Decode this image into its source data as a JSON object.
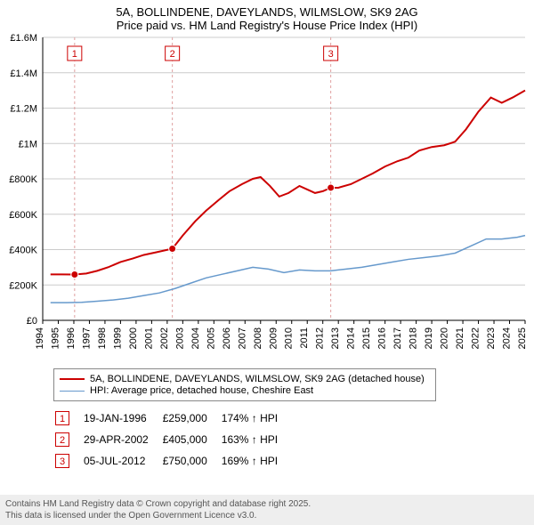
{
  "title_line1": "5A, BOLLINDENE, DAVEYLANDS, WILMSLOW, SK9 2AG",
  "title_line2": "Price paid vs. HM Land Registry's House Price Index (HPI)",
  "chart": {
    "type": "line",
    "background_color": "#ffffff",
    "grid_color": "#cccccc",
    "x": {
      "min": 1994,
      "max": 2025,
      "ticks": [
        1994,
        1995,
        1996,
        1997,
        1998,
        1999,
        2000,
        2001,
        2002,
        2003,
        2004,
        2005,
        2006,
        2007,
        2008,
        2009,
        2010,
        2011,
        2012,
        2013,
        2014,
        2015,
        2016,
        2017,
        2018,
        2019,
        2020,
        2021,
        2022,
        2023,
        2024,
        2025
      ],
      "tick_label_rotation": -90,
      "tick_fontsize": 11
    },
    "y": {
      "min": 0,
      "max": 1600000,
      "ticks": [
        0,
        200000,
        400000,
        600000,
        800000,
        1000000,
        1200000,
        1400000,
        1600000
      ],
      "tick_labels": [
        "£0",
        "£200K",
        "£400K",
        "£600K",
        "£800K",
        "£1M",
        "£1.2M",
        "£1.4M",
        "£1.6M"
      ],
      "tick_fontsize": 11
    },
    "series": [
      {
        "name": "price_paid",
        "label": "5A, BOLLINDENE, DAVEYLANDS, WILMSLOW, SK9 2AG (detached house)",
        "color": "#cc0000",
        "line_width": 2,
        "points": [
          [
            1994.5,
            260000
          ],
          [
            1995.2,
            260000
          ],
          [
            1996.05,
            259000
          ],
          [
            1996.8,
            265000
          ],
          [
            1997.5,
            280000
          ],
          [
            1998.2,
            300000
          ],
          [
            1999.0,
            330000
          ],
          [
            1999.8,
            350000
          ],
          [
            2000.5,
            370000
          ],
          [
            2001.3,
            385000
          ],
          [
            2002.33,
            405000
          ],
          [
            2003.0,
            480000
          ],
          [
            2003.8,
            560000
          ],
          [
            2004.5,
            620000
          ],
          [
            2005.3,
            680000
          ],
          [
            2006.0,
            730000
          ],
          [
            2006.8,
            770000
          ],
          [
            2007.5,
            800000
          ],
          [
            2008.0,
            810000
          ],
          [
            2008.6,
            760000
          ],
          [
            2009.2,
            700000
          ],
          [
            2009.8,
            720000
          ],
          [
            2010.5,
            760000
          ],
          [
            2011.0,
            740000
          ],
          [
            2011.5,
            720000
          ],
          [
            2012.0,
            730000
          ],
          [
            2012.51,
            750000
          ],
          [
            2013.0,
            750000
          ],
          [
            2013.8,
            770000
          ],
          [
            2014.5,
            800000
          ],
          [
            2015.2,
            830000
          ],
          [
            2016.0,
            870000
          ],
          [
            2016.8,
            900000
          ],
          [
            2017.5,
            920000
          ],
          [
            2018.2,
            960000
          ],
          [
            2019.0,
            980000
          ],
          [
            2019.8,
            990000
          ],
          [
            2020.5,
            1010000
          ],
          [
            2021.2,
            1080000
          ],
          [
            2022.0,
            1180000
          ],
          [
            2022.8,
            1260000
          ],
          [
            2023.5,
            1230000
          ],
          [
            2024.2,
            1260000
          ],
          [
            2025.0,
            1300000
          ]
        ]
      },
      {
        "name": "hpi",
        "label": "HPI: Average price, detached house, Cheshire East",
        "color": "#6699cc",
        "line_width": 1.5,
        "points": [
          [
            1994.5,
            100000
          ],
          [
            1995.5,
            100000
          ],
          [
            1996.5,
            102000
          ],
          [
            1997.5,
            108000
          ],
          [
            1998.5,
            115000
          ],
          [
            1999.5,
            125000
          ],
          [
            2000.5,
            140000
          ],
          [
            2001.5,
            155000
          ],
          [
            2002.5,
            180000
          ],
          [
            2003.5,
            210000
          ],
          [
            2004.5,
            240000
          ],
          [
            2005.5,
            260000
          ],
          [
            2006.5,
            280000
          ],
          [
            2007.5,
            300000
          ],
          [
            2008.5,
            290000
          ],
          [
            2009.5,
            270000
          ],
          [
            2010.5,
            285000
          ],
          [
            2011.5,
            280000
          ],
          [
            2012.5,
            280000
          ],
          [
            2013.5,
            290000
          ],
          [
            2014.5,
            300000
          ],
          [
            2015.5,
            315000
          ],
          [
            2016.5,
            330000
          ],
          [
            2017.5,
            345000
          ],
          [
            2018.5,
            355000
          ],
          [
            2019.5,
            365000
          ],
          [
            2020.5,
            380000
          ],
          [
            2021.5,
            420000
          ],
          [
            2022.5,
            460000
          ],
          [
            2023.5,
            460000
          ],
          [
            2024.5,
            470000
          ],
          [
            2025.0,
            480000
          ]
        ]
      }
    ],
    "sale_markers": [
      {
        "n": "1",
        "x": 1996.05,
        "y": 259000
      },
      {
        "n": "2",
        "x": 2002.33,
        "y": 405000
      },
      {
        "n": "3",
        "x": 2012.51,
        "y": 750000
      }
    ],
    "marker_box_color": "#cc0000",
    "marker_dot_fill": "#cc0000",
    "marker_line_color": "#e0a0a0"
  },
  "legend": {
    "items": [
      {
        "color": "#cc0000",
        "width": 2,
        "label": "5A, BOLLINDENE, DAVEYLANDS, WILMSLOW, SK9 2AG (detached house)"
      },
      {
        "color": "#6699cc",
        "width": 1.5,
        "label": "HPI: Average price, detached house, Cheshire East"
      }
    ]
  },
  "sales_table": {
    "rows": [
      {
        "n": "1",
        "date": "19-JAN-1996",
        "price": "£259,000",
        "hpi": "174% ↑ HPI"
      },
      {
        "n": "2",
        "date": "29-APR-2002",
        "price": "£405,000",
        "hpi": "163% ↑ HPI"
      },
      {
        "n": "3",
        "date": "05-JUL-2012",
        "price": "£750,000",
        "hpi": "169% ↑ HPI"
      }
    ]
  },
  "footer_line1": "Contains HM Land Registry data © Crown copyright and database right 2025.",
  "footer_line2": "This data is licensed under the Open Government Licence v3.0."
}
